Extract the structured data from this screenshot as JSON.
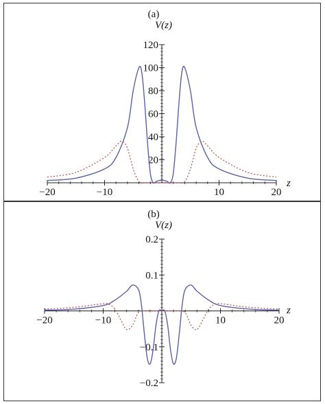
{
  "chart_data": [
    {
      "type": "line",
      "panel_label": "(a)",
      "ylabel": "V(z)",
      "xlabel": "z",
      "xlim": [
        -20,
        20
      ],
      "ylim": [
        0,
        120
      ],
      "xticks": [
        -20,
        -10,
        10,
        20
      ],
      "yticks": [
        20,
        40,
        60,
        80,
        100,
        120
      ],
      "grid": false,
      "series": [
        {
          "style": "solid",
          "color": "#5b5fa8",
          "x": [
            -20,
            -15,
            -10,
            -8,
            -6,
            -5,
            -4,
            -3.5,
            -3,
            -2.5,
            -2,
            -1.5,
            -1,
            -0.5,
            0,
            0.5,
            1,
            1.5,
            2,
            2.5,
            3,
            3.5,
            4,
            5,
            6,
            8,
            10,
            15,
            20
          ],
          "y": [
            2,
            4,
            12,
            22,
            48,
            80,
            100,
            96,
            70,
            35,
            8,
            0,
            1,
            2,
            2,
            2,
            1,
            0,
            8,
            35,
            70,
            96,
            100,
            80,
            48,
            22,
            12,
            4,
            2
          ]
        },
        {
          "style": "dotted",
          "color": "#b24a4a",
          "x": [
            -20,
            -15,
            -10,
            -8,
            -7,
            -6,
            -5,
            -4,
            -3,
            -2,
            0,
            2,
            3,
            4,
            5,
            6,
            7,
            8,
            10,
            15,
            20
          ],
          "y": [
            5,
            9,
            22,
            32,
            36,
            30,
            12,
            1,
            0,
            0,
            0,
            0,
            0,
            1,
            12,
            30,
            36,
            32,
            22,
            9,
            5
          ]
        }
      ]
    },
    {
      "type": "line",
      "panel_label": "(b)",
      "ylabel": "V(z)",
      "xlabel": "z",
      "xlim": [
        -20,
        20
      ],
      "ylim": [
        -0.2,
        0.2
      ],
      "xticks": [
        -20,
        -10,
        10,
        20
      ],
      "yticks": [
        -0.2,
        -0.1,
        0.1,
        0.2
      ],
      "grid": false,
      "series": [
        {
          "style": "solid",
          "color": "#5b5fa8",
          "x": [
            -20,
            -15,
            -10,
            -8,
            -6,
            -5,
            -4,
            -3.5,
            -3,
            -2.5,
            -2,
            -1.5,
            -1,
            -0.5,
            0,
            0.5,
            1,
            1.5,
            2,
            2.5,
            3,
            3.5,
            4,
            5,
            6,
            8,
            10,
            15,
            20
          ],
          "y": [
            0.002,
            0.005,
            0.015,
            0.03,
            0.055,
            0.072,
            0.06,
            0.02,
            -0.06,
            -0.13,
            -0.148,
            -0.11,
            -0.04,
            0.0,
            0.0,
            0.0,
            -0.04,
            -0.11,
            -0.148,
            -0.13,
            -0.06,
            0.02,
            0.06,
            0.072,
            0.055,
            0.03,
            0.015,
            0.005,
            0.002
          ]
        },
        {
          "style": "dotted",
          "color": "#b24a4a",
          "x": [
            -20,
            -15,
            -10,
            -9,
            -8,
            -7,
            -6,
            -5,
            -4,
            -3,
            -2,
            -1,
            0,
            1,
            2,
            3,
            4,
            5,
            6,
            7,
            8,
            9,
            10,
            15,
            20
          ],
          "y": [
            0.005,
            0.01,
            0.02,
            0.018,
            0.005,
            -0.025,
            -0.052,
            -0.04,
            -0.005,
            0.0,
            0.0,
            0.0,
            0.0,
            0.0,
            0.0,
            0.0,
            -0.005,
            -0.04,
            -0.052,
            -0.025,
            0.005,
            0.018,
            0.02,
            0.01,
            0.005
          ]
        }
      ]
    }
  ]
}
